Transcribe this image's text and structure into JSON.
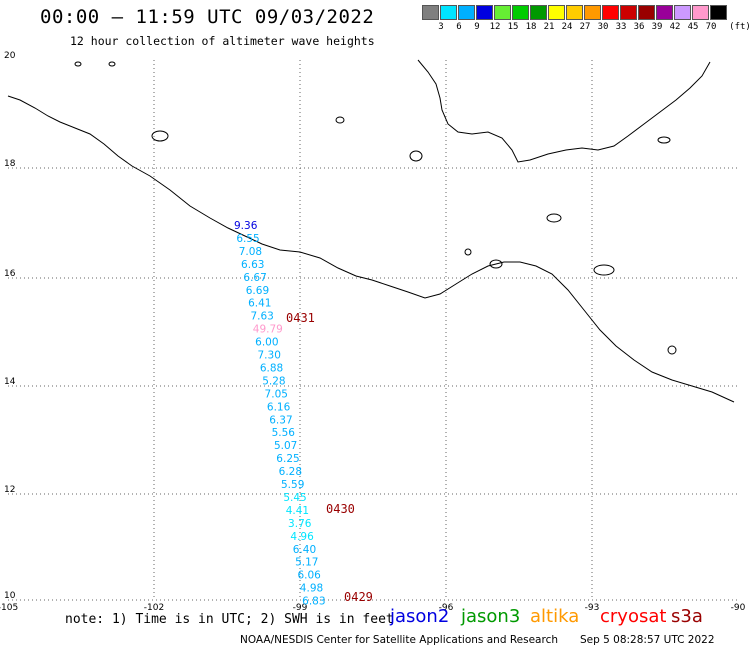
{
  "header": {
    "title": "00:00 – 11:59 UTC 09/03/2022",
    "subtitle": "12 hour collection of altimeter wave heights"
  },
  "legend": {
    "labels": [
      "3",
      "6",
      "9",
      "12",
      "15",
      "18",
      "21",
      "24",
      "27",
      "30",
      "33",
      "36",
      "39",
      "42",
      "45",
      "70"
    ],
    "unit": "(ft)",
    "colors": [
      "#7f7f7f",
      "#00e5ff",
      "#00b0ff",
      "#0000e0",
      "#66ee33",
      "#00cc00",
      "#009900",
      "#ffff00",
      "#ffcc00",
      "#ff9900",
      "#ff0000",
      "#cc0000",
      "#990000",
      "#990099",
      "#cc99ff",
      "#ff99cc",
      "#000000"
    ]
  },
  "map": {
    "lat_labels": [
      "20",
      "18",
      "16",
      "14",
      "12",
      "10"
    ],
    "lon_labels": [
      "-105",
      "-102",
      "-99",
      "-96",
      "-93",
      "-90"
    ],
    "track_values": [
      "9.36",
      "6.55",
      "7.08",
      "6.63",
      "6.67",
      "6.69",
      "6.41",
      "7.63",
      "49.79",
      "6.00",
      "7.30",
      "6.88",
      "5.28",
      "7.05",
      "6.16",
      "6.37",
      "5.56",
      "5.07",
      "6.25",
      "6.28",
      "5.59",
      "5.45",
      "4.41",
      "3.76",
      "4.96",
      "6.40",
      "5.17",
      "6.06",
      "4.98",
      "6.83"
    ],
    "track_colors": [
      "#0000e0",
      "#00b0ff",
      "#00b0ff",
      "#00b0ff",
      "#00b0ff",
      "#00b0ff",
      "#00b0ff",
      "#00b0ff",
      "#ff99cc",
      "#00b0ff",
      "#00b0ff",
      "#00b0ff",
      "#00b0ff",
      "#00b0ff",
      "#00b0ff",
      "#00b0ff",
      "#00b0ff",
      "#00b0ff",
      "#00b0ff",
      "#00b0ff",
      "#00b0ff",
      "#00e5ff",
      "#00e5ff",
      "#00e5ff",
      "#00e5ff",
      "#00b0ff",
      "#00b0ff",
      "#00b0ff",
      "#00b0ff",
      "#00b0ff"
    ],
    "time_labels": [
      "0431",
      "0430",
      "0429"
    ],
    "time_color": "#990000"
  },
  "footer": {
    "note": "note: 1) Time is in UTC; 2) SWH is in feet",
    "satellites": [
      {
        "name": "jason2",
        "color": "#0000e0"
      },
      {
        "name": "jason3",
        "color": "#009900"
      },
      {
        "name": "altika",
        "color": "#ff9900"
      },
      {
        "name": "cryosat",
        "color": "#ff0000"
      },
      {
        "name": "s3a",
        "color": "#990000"
      }
    ],
    "credit": "NOAA/NESDIS Center for Satellite Applications and Research",
    "timestamp": "Sep  5 08:28:57 UTC 2022"
  }
}
